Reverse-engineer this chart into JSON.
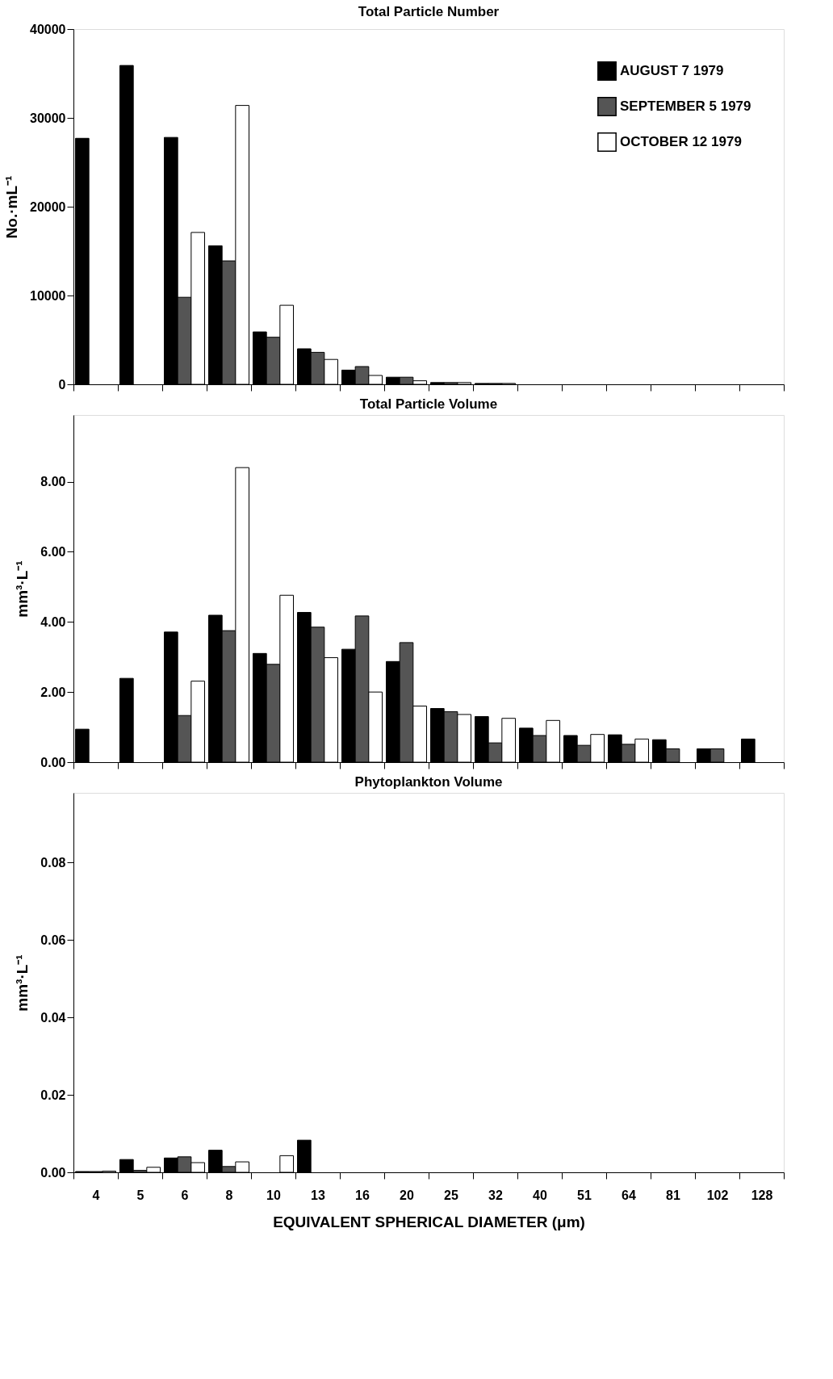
{
  "chart_data": [
    {
      "type": "bar",
      "title": "Total Particle Number",
      "ylabel": "No.·mL⁻¹",
      "categories": [
        "4",
        "5",
        "6",
        "8",
        "10",
        "13",
        "16",
        "20",
        "25",
        "32",
        "40",
        "51",
        "64",
        "81",
        "102",
        "128"
      ],
      "series": [
        {
          "name": "AUGUST 7 1979",
          "color": "#000000",
          "values": [
            27700,
            35900,
            27800,
            15600,
            5900,
            4000,
            1600,
            800,
            200,
            100,
            null,
            null,
            null,
            null,
            null,
            null
          ]
        },
        {
          "name": "SEPTEMBER 5 1979",
          "color": "#555555",
          "values": [
            null,
            null,
            9800,
            13900,
            5300,
            3600,
            2000,
            800,
            200,
            100,
            null,
            null,
            null,
            null,
            null,
            null
          ]
        },
        {
          "name": "OCTOBER 12 1979",
          "color": "#ffffff",
          "values": [
            null,
            null,
            17100,
            31400,
            8900,
            2800,
            1000,
            400,
            200,
            100,
            null,
            null,
            null,
            null,
            null,
            null
          ]
        }
      ],
      "ylim": [
        0,
        40000
      ],
      "yticks": [
        0,
        10000,
        20000,
        30000,
        40000
      ],
      "grid": false,
      "legend": "top right",
      "tick_labels": "y"
    },
    {
      "type": "bar",
      "title": "Total Particle Volume",
      "ylabel": "mm³·L⁻¹",
      "categories": [
        "4",
        "5",
        "6",
        "8",
        "10",
        "13",
        "16",
        "20",
        "25",
        "32",
        "40",
        "51",
        "64",
        "81",
        "102",
        "128"
      ],
      "series": [
        {
          "color": "#000000",
          "values": [
            0.94,
            2.39,
            3.71,
            4.19,
            3.1,
            4.27,
            3.22,
            2.87,
            1.53,
            1.3,
            0.97,
            0.76,
            0.78,
            0.64,
            0.38,
            0.66
          ]
        },
        {
          "color": "#555555",
          "values": [
            null,
            null,
            1.33,
            3.75,
            2.79,
            3.85,
            4.17,
            3.41,
            1.44,
            0.55,
            0.76,
            0.48,
            0.51,
            0.38,
            0.38,
            null
          ]
        },
        {
          "color": "#ffffff",
          "values": [
            null,
            null,
            2.31,
            8.4,
            4.76,
            2.98,
            2.0,
            1.6,
            1.36,
            1.25,
            1.19,
            0.79,
            0.66,
            null,
            null,
            null
          ]
        }
      ],
      "ylim": [
        0,
        9.9
      ],
      "yticks": [
        {
          "value": 0,
          "label": "0.00"
        },
        {
          "value": 2,
          "label": "2.00"
        },
        {
          "value": 4,
          "label": "4.00"
        },
        {
          "value": 6,
          "label": "6.00"
        },
        {
          "value": 8,
          "label": "8.00"
        }
      ],
      "grid": false,
      "tick_labels": "y"
    },
    {
      "type": "bar",
      "title": "Phytoplankton Volume",
      "ylabel": "mm³·L⁻¹",
      "xlabel": "EQUIVALENT SPHERICAL DIAMETER (μm)",
      "categories": [
        "4",
        "5",
        "6",
        "8",
        "10",
        "13",
        "16",
        "20",
        "25",
        "32",
        "40",
        "51",
        "64",
        "81",
        "102",
        "128"
      ],
      "series": [
        {
          "color": "#000000",
          "values": [
            0.0002,
            0.0033,
            0.0037,
            0.0057,
            null,
            0.0083,
            null,
            null,
            null,
            null,
            null,
            null,
            null,
            null,
            null,
            null
          ]
        },
        {
          "color": "#555555",
          "values": [
            0.0002,
            0.0005,
            0.004,
            0.0015,
            null,
            null,
            null,
            null,
            null,
            null,
            null,
            null,
            null,
            null,
            null,
            null
          ]
        },
        {
          "color": "#ffffff",
          "values": [
            0.0003,
            0.0013,
            0.0025,
            0.0027,
            0.0043,
            null,
            null,
            null,
            null,
            null,
            null,
            null,
            null,
            null,
            null,
            null
          ]
        }
      ],
      "ylim": [
        0,
        0.098
      ],
      "yticks": [
        {
          "value": 0,
          "label": "0.00"
        },
        {
          "value": 0.02,
          "label": "0.02"
        },
        {
          "value": 0.04,
          "label": "0.04"
        },
        {
          "value": 0.06,
          "label": "0.06"
        },
        {
          "value": 0.08,
          "label": "0.08"
        }
      ],
      "grid": false
    }
  ]
}
